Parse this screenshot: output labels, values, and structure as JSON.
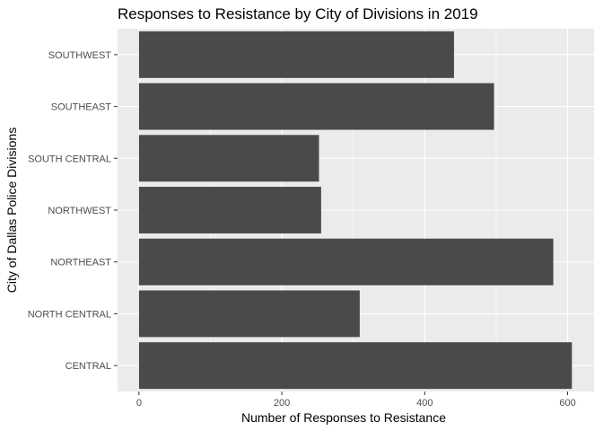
{
  "chart_data": {
    "type": "bar",
    "orientation": "horizontal",
    "title": "Responses to Resistance by City of Divisions in 2019",
    "xlabel": "Number of Responses to Resistance",
    "ylabel": "City of Dallas Police Divisions",
    "categories": [
      "CENTRAL",
      "NORTH CENTRAL",
      "NORTHEAST",
      "NORTHWEST",
      "SOUTH CENTRAL",
      "SOUTHEAST",
      "SOUTHWEST"
    ],
    "values": [
      606,
      309,
      580,
      255,
      252,
      497,
      441
    ],
    "xlim": [
      -30,
      637
    ],
    "xticks": [
      0,
      200,
      400,
      600
    ],
    "grid": true,
    "legend": "none",
    "colors": {
      "panel": "#ebebeb",
      "grid_major": "#ffffff",
      "bar": "#4a4a4a"
    }
  }
}
